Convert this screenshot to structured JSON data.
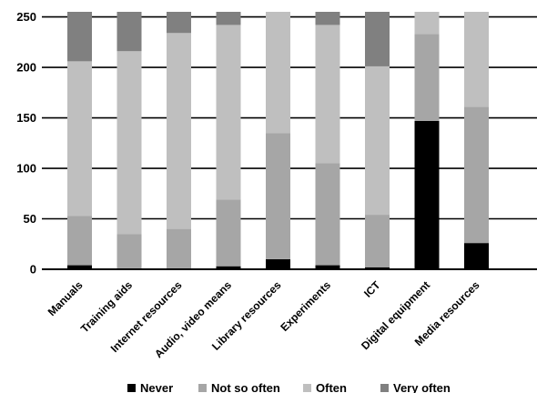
{
  "chart_data": {
    "type": "bar",
    "stacked": true,
    "categories": [
      "Manuals",
      "Training aids",
      "Internet resources",
      "Audio, video means",
      "Library resources",
      "Experiments",
      "ICT",
      "Digital equipment",
      "Media resources"
    ],
    "series": [
      {
        "name": "Never",
        "color": "#000000",
        "values": [
          4,
          0,
          0,
          3,
          10,
          4,
          2,
          147,
          26
        ]
      },
      {
        "name": "Not so often",
        "color": "#a6a6a6",
        "values": [
          49,
          35,
          40,
          66,
          125,
          101,
          52,
          86,
          135
        ]
      },
      {
        "name": "Often",
        "color": "#bfbfbf",
        "values": [
          153,
          181,
          194,
          173,
          120,
          137,
          147,
          22,
          94
        ]
      },
      {
        "name": "Very often",
        "color": "#808080",
        "values": [
          49,
          39,
          21,
          13,
          0,
          13,
          54,
          0,
          0
        ]
      }
    ],
    "yticks": [
      0,
      50,
      100,
      150,
      200,
      250
    ],
    "ylim": [
      0,
      255
    ],
    "grid": true,
    "legend_position": "bottom",
    "title": "",
    "xlabel": "",
    "ylabel": ""
  }
}
